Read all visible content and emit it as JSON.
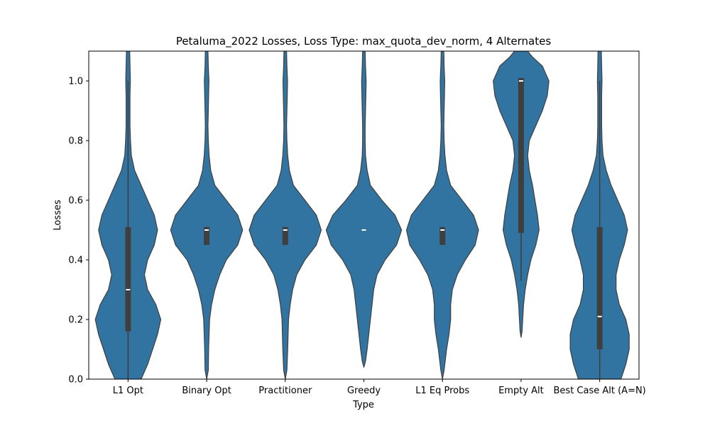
{
  "chart_data": {
    "type": "violin",
    "title": "Petaluma_2022 Losses, Loss Type: max_quota_dev_norm, 4 Alternates",
    "xlabel": "Type",
    "ylabel": "Losses",
    "ylim": [
      0.0,
      1.1
    ],
    "yticks": [
      0.0,
      0.2,
      0.4,
      0.6,
      0.8,
      1.0
    ],
    "ytick_labels": [
      "0.0",
      "0.2",
      "0.4",
      "0.6",
      "0.8",
      "1.0"
    ],
    "grid": false,
    "legend": "none",
    "color": "#3274a1",
    "box_color": "#3f3f3f",
    "categories": [
      "L1 Opt",
      "Binary Opt",
      "Practitioner",
      "Greedy",
      "L1 Eq Probs",
      "Empty Alt",
      "Best Case Alt (A=N)"
    ],
    "series": [
      {
        "q1": 0.16,
        "median": 0.3,
        "q3": 0.51,
        "whisker": [
          0.0,
          1.0
        ],
        "profile": [
          [
            -0.02,
            0.0
          ],
          [
            0.0,
            0.08
          ],
          [
            0.05,
            0.12
          ],
          [
            0.1,
            0.15
          ],
          [
            0.15,
            0.18
          ],
          [
            0.2,
            0.2
          ],
          [
            0.25,
            0.17
          ],
          [
            0.3,
            0.12
          ],
          [
            0.35,
            0.1
          ],
          [
            0.4,
            0.12
          ],
          [
            0.45,
            0.16
          ],
          [
            0.5,
            0.18
          ],
          [
            0.55,
            0.16
          ],
          [
            0.6,
            0.12
          ],
          [
            0.65,
            0.08
          ],
          [
            0.7,
            0.04
          ],
          [
            0.75,
            0.02
          ],
          [
            0.8,
            0.015
          ],
          [
            0.85,
            0.012
          ],
          [
            0.9,
            0.012
          ],
          [
            0.95,
            0.012
          ],
          [
            1.0,
            0.014
          ],
          [
            1.05,
            0.012
          ],
          [
            1.1,
            0.01
          ]
        ]
      },
      {
        "q1": 0.45,
        "median": 0.5,
        "q3": 0.51,
        "whisker": [
          0.45,
          0.51
        ],
        "profile": [
          [
            0.0,
            0.0
          ],
          [
            0.03,
            0.01
          ],
          [
            0.1,
            0.012
          ],
          [
            0.2,
            0.018
          ],
          [
            0.25,
            0.03
          ],
          [
            0.3,
            0.05
          ],
          [
            0.35,
            0.08
          ],
          [
            0.4,
            0.12
          ],
          [
            0.45,
            0.19
          ],
          [
            0.5,
            0.22
          ],
          [
            0.55,
            0.19
          ],
          [
            0.6,
            0.12
          ],
          [
            0.65,
            0.05
          ],
          [
            0.7,
            0.025
          ],
          [
            0.75,
            0.015
          ],
          [
            0.8,
            0.01
          ],
          [
            0.85,
            0.008
          ],
          [
            0.9,
            0.01
          ],
          [
            0.95,
            0.012
          ],
          [
            1.0,
            0.014
          ],
          [
            1.05,
            0.01
          ],
          [
            1.1,
            0.008
          ]
        ]
      },
      {
        "q1": 0.45,
        "median": 0.5,
        "q3": 0.51,
        "whisker": [
          0.45,
          0.51
        ],
        "profile": [
          [
            0.0,
            0.0
          ],
          [
            0.03,
            0.01
          ],
          [
            0.1,
            0.015
          ],
          [
            0.2,
            0.02
          ],
          [
            0.25,
            0.03
          ],
          [
            0.3,
            0.045
          ],
          [
            0.35,
            0.07
          ],
          [
            0.4,
            0.12
          ],
          [
            0.45,
            0.19
          ],
          [
            0.5,
            0.22
          ],
          [
            0.55,
            0.19
          ],
          [
            0.6,
            0.12
          ],
          [
            0.65,
            0.05
          ],
          [
            0.7,
            0.025
          ],
          [
            0.75,
            0.015
          ],
          [
            0.8,
            0.01
          ],
          [
            0.85,
            0.008
          ],
          [
            0.9,
            0.01
          ],
          [
            0.95,
            0.012
          ],
          [
            1.0,
            0.014
          ],
          [
            1.05,
            0.01
          ],
          [
            1.1,
            0.008
          ]
        ]
      },
      {
        "q1": 0.5,
        "median": 0.5,
        "q3": 0.5,
        "whisker": [
          0.5,
          0.5
        ],
        "profile": [
          [
            0.04,
            0.0
          ],
          [
            0.06,
            0.01
          ],
          [
            0.1,
            0.02
          ],
          [
            0.15,
            0.03
          ],
          [
            0.2,
            0.04
          ],
          [
            0.25,
            0.05
          ],
          [
            0.3,
            0.06
          ],
          [
            0.35,
            0.08
          ],
          [
            0.4,
            0.13
          ],
          [
            0.45,
            0.2
          ],
          [
            0.5,
            0.23
          ],
          [
            0.55,
            0.19
          ],
          [
            0.6,
            0.11
          ],
          [
            0.65,
            0.04
          ],
          [
            0.7,
            0.02
          ],
          [
            0.75,
            0.01
          ],
          [
            0.8,
            0.008
          ],
          [
            0.85,
            0.008
          ],
          [
            0.9,
            0.01
          ],
          [
            0.95,
            0.012
          ],
          [
            1.0,
            0.014
          ],
          [
            1.05,
            0.01
          ],
          [
            1.1,
            0.008
          ]
        ]
      },
      {
        "q1": 0.45,
        "median": 0.5,
        "q3": 0.51,
        "whisker": [
          0.45,
          0.51
        ],
        "profile": [
          [
            0.0,
            0.0
          ],
          [
            0.03,
            0.01
          ],
          [
            0.1,
            0.025
          ],
          [
            0.15,
            0.04
          ],
          [
            0.2,
            0.05
          ],
          [
            0.25,
            0.05
          ],
          [
            0.3,
            0.06
          ],
          [
            0.35,
            0.09
          ],
          [
            0.4,
            0.14
          ],
          [
            0.45,
            0.2
          ],
          [
            0.5,
            0.22
          ],
          [
            0.55,
            0.19
          ],
          [
            0.6,
            0.12
          ],
          [
            0.65,
            0.05
          ],
          [
            0.7,
            0.025
          ],
          [
            0.75,
            0.015
          ],
          [
            0.8,
            0.01
          ],
          [
            0.85,
            0.008
          ],
          [
            0.9,
            0.01
          ],
          [
            0.95,
            0.012
          ],
          [
            1.0,
            0.014
          ],
          [
            1.05,
            0.01
          ],
          [
            1.1,
            0.008
          ]
        ]
      },
      {
        "q1": 0.49,
        "median": 1.0,
        "q3": 1.01,
        "whisker": [
          0.33,
          1.0
        ],
        "profile": [
          [
            0.14,
            0.0
          ],
          [
            0.16,
            0.006
          ],
          [
            0.2,
            0.01
          ],
          [
            0.25,
            0.015
          ],
          [
            0.3,
            0.025
          ],
          [
            0.35,
            0.04
          ],
          [
            0.4,
            0.06
          ],
          [
            0.45,
            0.09
          ],
          [
            0.5,
            0.11
          ],
          [
            0.55,
            0.1
          ],
          [
            0.6,
            0.085
          ],
          [
            0.65,
            0.07
          ],
          [
            0.7,
            0.05
          ],
          [
            0.75,
            0.04
          ],
          [
            0.8,
            0.05
          ],
          [
            0.85,
            0.09
          ],
          [
            0.9,
            0.13
          ],
          [
            0.95,
            0.16
          ],
          [
            1.0,
            0.17
          ],
          [
            1.05,
            0.13
          ],
          [
            1.08,
            0.07
          ],
          [
            1.1,
            0.04
          ]
        ]
      },
      {
        "q1": 0.1,
        "median": 0.21,
        "q3": 0.51,
        "whisker": [
          0.0,
          1.0
        ],
        "profile": [
          [
            0.0,
            0.13
          ],
          [
            0.05,
            0.16
          ],
          [
            0.1,
            0.18
          ],
          [
            0.15,
            0.18
          ],
          [
            0.2,
            0.16
          ],
          [
            0.25,
            0.12
          ],
          [
            0.3,
            0.1
          ],
          [
            0.35,
            0.1
          ],
          [
            0.4,
            0.12
          ],
          [
            0.45,
            0.15
          ],
          [
            0.5,
            0.17
          ],
          [
            0.55,
            0.15
          ],
          [
            0.6,
            0.11
          ],
          [
            0.65,
            0.07
          ],
          [
            0.7,
            0.04
          ],
          [
            0.75,
            0.02
          ],
          [
            0.8,
            0.014
          ],
          [
            0.85,
            0.012
          ],
          [
            0.9,
            0.012
          ],
          [
            0.95,
            0.012
          ],
          [
            1.0,
            0.014
          ],
          [
            1.05,
            0.012
          ],
          [
            1.1,
            0.01
          ]
        ]
      }
    ]
  }
}
